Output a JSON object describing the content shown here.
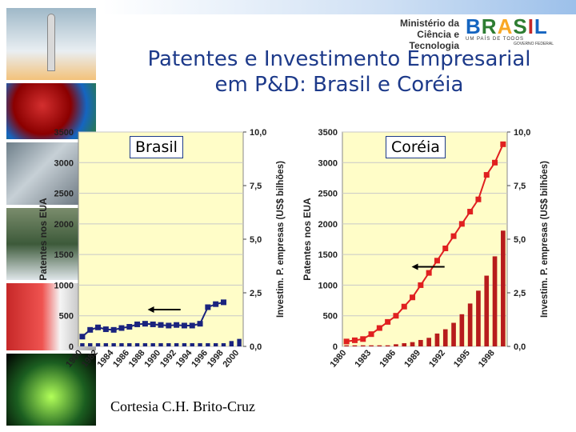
{
  "header": {
    "ministry_line1": "Ministério da",
    "ministry_line2": "Ciência e Tecnologia",
    "brand_word": "BRASIL",
    "brand_slogan": "UM PAÍS DE TODOS",
    "brand_gov": "GOVERNO FEDERAL"
  },
  "title_line1": "Patentes e Investimento Empresarial",
  "title_line2": "em P&D: Brasil e Coréia",
  "credit": "Cortesia C.H. Brito-Cruz",
  "colors": {
    "title": "#1d3a8a",
    "plot_bg": "#fffdc8",
    "brazil_series": "#1a237e",
    "korea_series": "#e02020",
    "korea_bars": "#b71c1c"
  },
  "chart_data": [
    {
      "type": "bar+line",
      "label": "Brasil",
      "y_left_label": "Patentes nos EUA",
      "y_right_label": "Investim. P. empresas (US$ bilhões)",
      "y_left_ticks": [
        "0",
        "500",
        "1000",
        "1500",
        "2000",
        "2500",
        "3000",
        "3500"
      ],
      "y_right_ticks": [
        "0,0",
        "2,5",
        "5,0",
        "7,5",
        "10,0"
      ],
      "ylim_left": [
        0,
        3500
      ],
      "ylim_right": [
        0,
        10
      ],
      "x_ticks": [
        "1980",
        "1982",
        "1984",
        "1986",
        "1988",
        "1990",
        "1992",
        "1994",
        "1996",
        "1998",
        "2000"
      ],
      "years": [
        1980,
        1981,
        1982,
        1983,
        1984,
        1985,
        1986,
        1987,
        1988,
        1989,
        1990,
        1991,
        1992,
        1993,
        1994,
        1995,
        1996,
        1997,
        1998,
        1999,
        2000
      ],
      "patents": [
        160,
        270,
        310,
        280,
        270,
        300,
        320,
        360,
        370,
        360,
        350,
        340,
        350,
        340,
        340,
        370,
        640,
        690,
        720,
        null,
        null
      ],
      "investment": [
        0.15,
        0.15,
        0.15,
        0.15,
        0.15,
        0.15,
        0.15,
        0.15,
        0.15,
        0.15,
        0.15,
        0.15,
        0.15,
        0.15,
        0.15,
        0.15,
        0.15,
        0.15,
        0.15,
        0.25,
        0.35
      ],
      "grid": "horizontal",
      "arrow": "left"
    },
    {
      "type": "bar+line",
      "label": "Coréia",
      "y_left_label": "Patentes nos EUA",
      "y_right_label": "Investim. P. empresas (US$ bilhões)",
      "y_left_ticks": [
        "0",
        "500",
        "1000",
        "1500",
        "2000",
        "2500",
        "3000",
        "3500"
      ],
      "y_right_ticks": [
        "0,0",
        "2,5",
        "5,0",
        "7,5",
        "10,0"
      ],
      "ylim_left": [
        0,
        3500
      ],
      "ylim_right": [
        0,
        10
      ],
      "x_ticks": [
        "1980",
        "1983",
        "1986",
        "1989",
        "1992",
        "1995",
        "1998"
      ],
      "years": [
        1980,
        1981,
        1982,
        1983,
        1984,
        1985,
        1986,
        1987,
        1988,
        1989,
        1990,
        1991,
        1992,
        1993,
        1994,
        1995,
        1996,
        1997,
        1998,
        1999
      ],
      "patents": [
        80,
        100,
        120,
        200,
        300,
        400,
        500,
        650,
        800,
        1000,
        1200,
        1400,
        1600,
        1800,
        2000,
        2200,
        2400,
        2800,
        3000,
        3300
      ],
      "investment": [
        0.05,
        0.05,
        0.05,
        0.05,
        0.05,
        0.05,
        0.1,
        0.15,
        0.2,
        0.3,
        0.4,
        0.6,
        0.8,
        1.1,
        1.5,
        2,
        2.6,
        3.3,
        4.2,
        5.4
      ],
      "grid": "horizontal",
      "arrow": "left"
    }
  ]
}
